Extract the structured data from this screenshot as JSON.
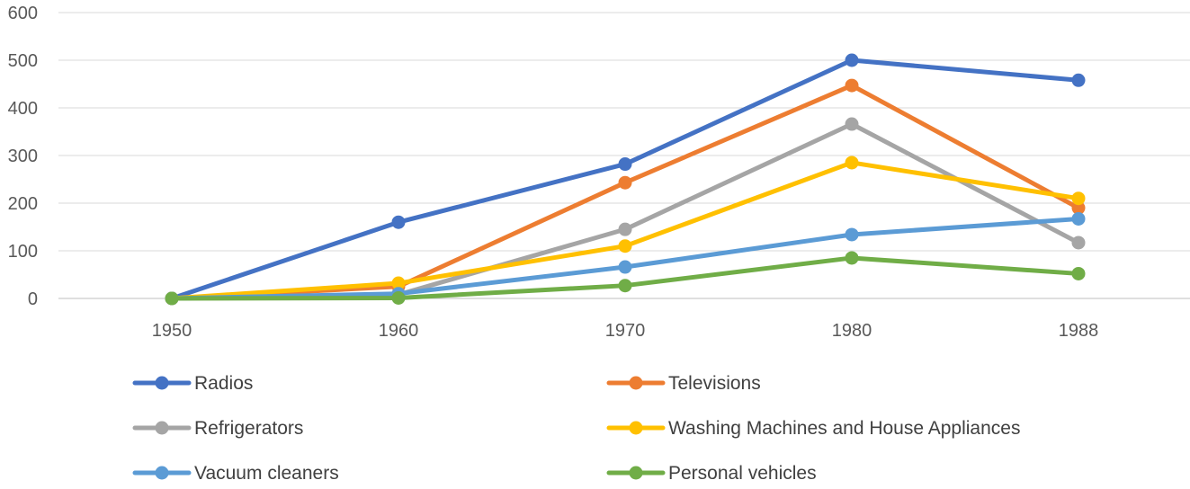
{
  "chart_data": {
    "type": "line",
    "title": "",
    "xlabel": "",
    "ylabel": "",
    "categories": [
      "1950",
      "1960",
      "1970",
      "1980",
      "1988"
    ],
    "ylim": [
      0,
      600
    ],
    "yticks": [
      0,
      100,
      200,
      300,
      400,
      500,
      600
    ],
    "grid": true,
    "legend_position": "bottom",
    "series": [
      {
        "name": "Radios",
        "color": "#4472C4",
        "values": [
          0,
          160,
          282,
          500,
          458
        ]
      },
      {
        "name": "Televisions",
        "color": "#ED7D31",
        "values": [
          0,
          25,
          243,
          447,
          190
        ]
      },
      {
        "name": "Refrigerators",
        "color": "#A5A5A5",
        "values": [
          0,
          8,
          145,
          366,
          117
        ]
      },
      {
        "name": "Washing Machines and House Appliances",
        "color": "#FFC000",
        "values": [
          0,
          32,
          110,
          285,
          210
        ]
      },
      {
        "name": "Vacuum cleaners",
        "color": "#5B9BD5",
        "values": [
          0,
          10,
          66,
          134,
          167
        ]
      },
      {
        "name": "Personal vehicles",
        "color": "#70AD47",
        "values": [
          0,
          1,
          27,
          85,
          52
        ]
      }
    ]
  }
}
